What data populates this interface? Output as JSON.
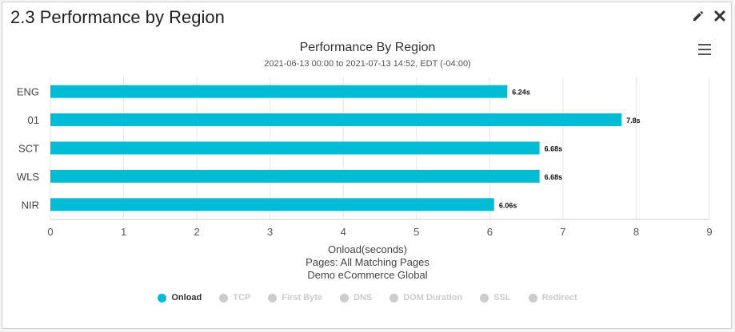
{
  "panel": {
    "title": "2.3 Performance by Region",
    "edit_icon": "pencil-icon",
    "close_icon": "close-icon",
    "menu_icon": "hamburger-menu-icon"
  },
  "colors": {
    "bar": "#00bcd4",
    "legend_inactive": "#cccccc",
    "legend_active_text": "#333333",
    "legend_inactive_text": "#cccccc",
    "grid": "#e6e6e6"
  },
  "chart_data": {
    "type": "bar",
    "orientation": "horizontal",
    "title": "Performance By Region",
    "subtitle": "2021-06-13 00:00 to 2021-07-13 14:52, EDT (-04:00)",
    "categories": [
      "ENG",
      "01",
      "SCT",
      "WLS",
      "NIR"
    ],
    "series": [
      {
        "name": "Onload",
        "values": [
          6.24,
          7.8,
          6.68,
          6.68,
          6.06
        ],
        "labels": [
          "6.24s",
          "7.8s",
          "6.68s",
          "6.68s",
          "6.06s"
        ]
      }
    ],
    "xlim": [
      0,
      9
    ],
    "xticks": [
      0,
      1,
      2,
      3,
      4,
      5,
      6,
      7,
      8,
      9
    ],
    "xlabel_lines": [
      "Onload(seconds)",
      "Pages: All Matching Pages",
      "Demo eCommerce Global"
    ],
    "grid": true,
    "legend_position": "bottom-center",
    "legend": [
      {
        "label": "Onload",
        "active": true
      },
      {
        "label": "TCP",
        "active": false
      },
      {
        "label": "First Byte",
        "active": false
      },
      {
        "label": "DNS",
        "active": false
      },
      {
        "label": "DOM Duration",
        "active": false
      },
      {
        "label": "SSL",
        "active": false
      },
      {
        "label": "Redirect",
        "active": false
      }
    ]
  }
}
